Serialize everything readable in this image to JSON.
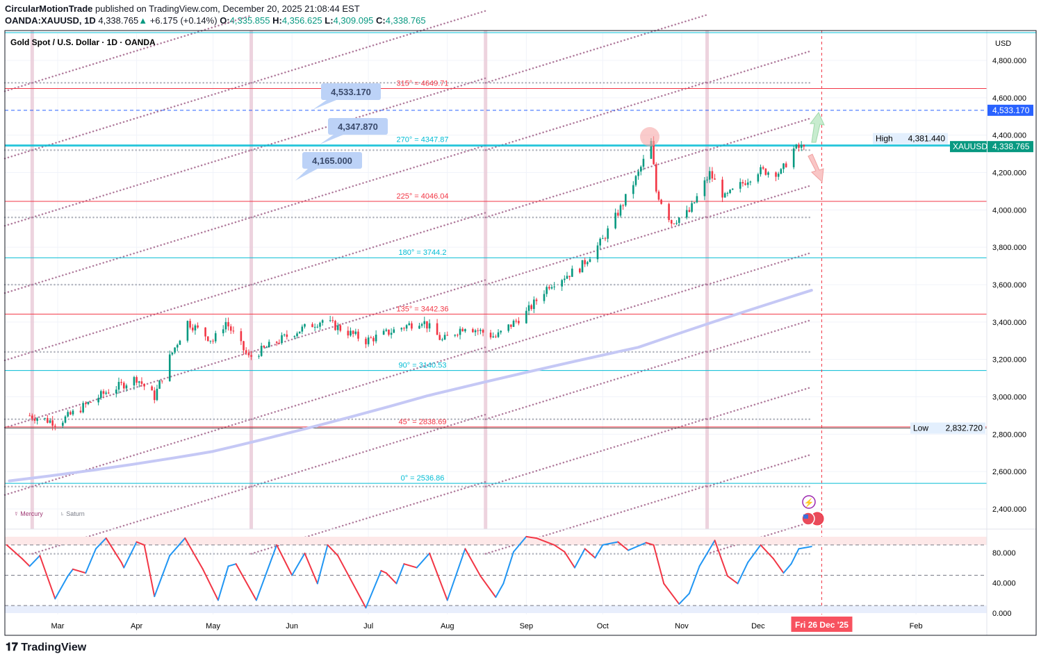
{
  "header": {
    "author": "CircularMotionTrade",
    "published": "published on TradingView.com, December 20, 2025 21:08:44 EST",
    "symbol": "OANDA:XAUUSD, 1D",
    "last": "4,338.765",
    "change": "+6.175 (+0.14%)",
    "o_label": "O:",
    "o": "4,335.855",
    "h_label": "H:",
    "h": "4,356.625",
    "l_label": "L:",
    "l": "4,309.095",
    "c_label": "C:",
    "c": "4,338.765"
  },
  "chart_title": "Gold Spot / U.S. Dollar · 1D · OANDA",
  "currency": "USD",
  "brand": "TradingView",
  "colors": {
    "up": "#089981",
    "down": "#f23645",
    "accent_blue": "#2962ff",
    "cyan": "#00bcd4",
    "ma": "#c5c8f5",
    "band": "#e8c8d6"
  },
  "chart_data": [
    {
      "type": "candlestick",
      "y_range": [
        2300,
        4900
      ],
      "y_ticks": [
        "4,800.000",
        "4,600.000",
        "4,400.000",
        "4,200.000",
        "4,000.000",
        "3,800.000",
        "3,600.000",
        "3,400.000",
        "3,200.000",
        "3,000.000",
        "2,800.000",
        "2,600.000",
        "2,400.000"
      ],
      "y_tick_values": [
        4800,
        4600,
        4400,
        4200,
        4000,
        3800,
        3600,
        3400,
        3200,
        3000,
        2800,
        2600,
        2400
      ],
      "x_ticks": [
        {
          "label": "Mar",
          "date": "2025-03-01"
        },
        {
          "label": "Apr",
          "date": "2025-04-01"
        },
        {
          "label": "May",
          "date": "2025-05-01"
        },
        {
          "label": "Jun",
          "date": "2025-06-01"
        },
        {
          "label": "Jul",
          "date": "2025-07-01"
        },
        {
          "label": "Aug",
          "date": "2025-08-01"
        },
        {
          "label": "Sep",
          "date": "2025-09-01"
        },
        {
          "label": "Oct",
          "date": "2025-10-01"
        },
        {
          "label": "Nov",
          "date": "2025-11-01"
        },
        {
          "label": "Dec",
          "date": "2025-12-01"
        },
        {
          "label": "Feb",
          "date": "2026-02-01"
        }
      ],
      "cursor_date_label": "Fri 26 Dec '25",
      "cursor_date": "2025-12-26",
      "approx_close_path": [
        [
          "2025-02-18",
          2900
        ],
        [
          "2025-03-01",
          2860
        ],
        [
          "2025-03-20",
          3025
        ],
        [
          "2025-04-01",
          3100
        ],
        [
          "2025-04-08",
          3000
        ],
        [
          "2025-04-14",
          3210
        ],
        [
          "2025-04-21",
          3400
        ],
        [
          "2025-05-01",
          3300
        ],
        [
          "2025-05-06",
          3400
        ],
        [
          "2025-05-15",
          3210
        ],
        [
          "2025-06-01",
          3340
        ],
        [
          "2025-06-13",
          3410
        ],
        [
          "2025-06-30",
          3300
        ],
        [
          "2025-07-22",
          3410
        ],
        [
          "2025-07-30",
          3300
        ],
        [
          "2025-08-08",
          3380
        ],
        [
          "2025-08-20",
          3320
        ],
        [
          "2025-09-01",
          3450
        ],
        [
          "2025-09-10",
          3600
        ],
        [
          "2025-09-22",
          3690
        ],
        [
          "2025-10-01",
          3840
        ],
        [
          "2025-10-08",
          4010
        ],
        [
          "2025-10-15",
          4195
        ],
        [
          "2025-10-20",
          4360
        ],
        [
          "2025-10-22",
          4100
        ],
        [
          "2025-10-28",
          3935
        ],
        [
          "2025-11-04",
          3990
        ],
        [
          "2025-11-12",
          4195
        ],
        [
          "2025-11-18",
          4065
        ],
        [
          "2025-12-01",
          4210
        ],
        [
          "2025-12-10",
          4200
        ],
        [
          "2025-12-15",
          4325
        ],
        [
          "2025-12-19",
          4338.765
        ]
      ],
      "moving_average": [
        [
          "2025-02-10",
          2550
        ],
        [
          "2025-05-01",
          2708
        ],
        [
          "2025-07-24",
          3005
        ],
        [
          "2025-10-15",
          3265
        ],
        [
          "2025-12-22",
          3570
        ]
      ],
      "degree_levels": [
        {
          "label": "315° = 4649.71",
          "value": 4649.71,
          "color": "#f23645"
        },
        {
          "label": "270° = 4347.87",
          "value": 4347.87,
          "color": "#00bcd4"
        },
        {
          "label": "225° = 4046.04",
          "value": 4046.04,
          "color": "#f23645"
        },
        {
          "label": "180° = 3744.2",
          "value": 3744.2,
          "color": "#00bcd4"
        },
        {
          "label": "135° = 3442.36",
          "value": 3442.36,
          "color": "#f23645"
        },
        {
          "label": "90° = 3140.53",
          "value": 3140.53,
          "color": "#00bcd4"
        },
        {
          "label": "45° = 2838.69",
          "value": 2838.69,
          "color": "#f23645"
        },
        {
          "label": "0° = 2536.86",
          "value": 2536.86,
          "color": "#00bcd4"
        }
      ],
      "grid_levels": [
        4680,
        4320,
        3960,
        3600,
        3240,
        2880,
        2520,
        2160
      ],
      "planet_band_dates": [
        "2025-02-19",
        "2025-05-16",
        "2025-08-16",
        "2025-11-11"
      ],
      "callouts": [
        "4,533.170",
        "4,347.870",
        "4,165.000"
      ],
      "target_line": {
        "value": 4533.17,
        "label": "4,533.170"
      },
      "high": {
        "label": "High",
        "value": 4381.44,
        "text": "4,381.440"
      },
      "low": {
        "label": "Low",
        "value": 2832.72,
        "text": "2,832.720"
      },
      "last_price": {
        "label": "XAUUSD",
        "value": 4338.765,
        "text": "4,338.765"
      },
      "legend": [
        "☿ Mercury",
        "♄ Saturn"
      ]
    },
    {
      "type": "line",
      "name": "oscillator",
      "y_range": [
        0,
        100
      ],
      "y_ticks": [
        "80.000",
        "40.000",
        "0.000"
      ],
      "y_tick_values": [
        80,
        40,
        0
      ],
      "levels": [
        90,
        50,
        10
      ],
      "points": [
        [
          "2025-02-09",
          90
        ],
        [
          "2025-02-15",
          72
        ],
        [
          "2025-02-18",
          62
        ],
        [
          "2025-02-22",
          76
        ],
        [
          "2025-02-28",
          19
        ],
        [
          "2025-03-05",
          49
        ],
        [
          "2025-03-07",
          58
        ],
        [
          "2025-03-12",
          53
        ],
        [
          "2025-03-16",
          85
        ],
        [
          "2025-03-20",
          99
        ],
        [
          "2025-03-26",
          67
        ],
        [
          "2025-03-27",
          60
        ],
        [
          "2025-04-01",
          94
        ],
        [
          "2025-04-04",
          90
        ],
        [
          "2025-04-08",
          22
        ],
        [
          "2025-04-14",
          76
        ],
        [
          "2025-04-20",
          99
        ],
        [
          "2025-04-27",
          58
        ],
        [
          "2025-05-03",
          17
        ],
        [
          "2025-05-07",
          62
        ],
        [
          "2025-05-10",
          65
        ],
        [
          "2025-05-18",
          17
        ],
        [
          "2025-05-26",
          90
        ],
        [
          "2025-06-01",
          50
        ],
        [
          "2025-06-06",
          79
        ],
        [
          "2025-06-11",
          39
        ],
        [
          "2025-06-15",
          90
        ],
        [
          "2025-06-19",
          76
        ],
        [
          "2025-06-30",
          7
        ],
        [
          "2025-07-06",
          56
        ],
        [
          "2025-07-08",
          53
        ],
        [
          "2025-07-12",
          39
        ],
        [
          "2025-07-15",
          65
        ],
        [
          "2025-07-20",
          60
        ],
        [
          "2025-07-25",
          79
        ],
        [
          "2025-08-01",
          17
        ],
        [
          "2025-08-08",
          85
        ],
        [
          "2025-08-14",
          49
        ],
        [
          "2025-08-20",
          21
        ],
        [
          "2025-08-23",
          39
        ],
        [
          "2025-08-27",
          81
        ],
        [
          "2025-09-01",
          101
        ],
        [
          "2025-09-05",
          99
        ],
        [
          "2025-09-12",
          90
        ],
        [
          "2025-09-16",
          81
        ],
        [
          "2025-09-20",
          60
        ],
        [
          "2025-09-24",
          85
        ],
        [
          "2025-09-28",
          73
        ],
        [
          "2025-10-01",
          90
        ],
        [
          "2025-10-07",
          94
        ],
        [
          "2025-10-11",
          83
        ],
        [
          "2025-10-18",
          93
        ],
        [
          "2025-10-21",
          90
        ],
        [
          "2025-10-25",
          39
        ],
        [
          "2025-10-31",
          12
        ],
        [
          "2025-11-04",
          26
        ],
        [
          "2025-11-08",
          62
        ],
        [
          "2025-11-14",
          96
        ],
        [
          "2025-11-19",
          49
        ],
        [
          "2025-11-23",
          39
        ],
        [
          "2025-11-27",
          67
        ],
        [
          "2025-12-02",
          90
        ],
        [
          "2025-12-07",
          72
        ],
        [
          "2025-12-11",
          53
        ],
        [
          "2025-12-14",
          65
        ],
        [
          "2025-12-17",
          85
        ],
        [
          "2025-12-22",
          88
        ]
      ]
    }
  ]
}
